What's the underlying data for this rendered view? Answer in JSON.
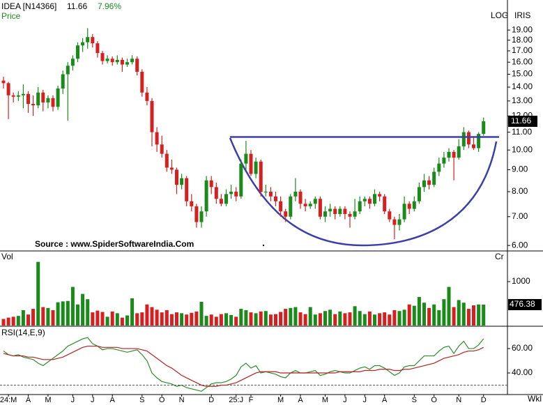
{
  "chart_data": [
    {
      "type": "candlestick",
      "title": "IDEA [N14366]",
      "change_label": "7.96%",
      "ylabel": "Price",
      "log": true,
      "scale_label": "LOG",
      "provider": "IRIS",
      "annotation": "Source : www.SpiderSoftwareIndia.Com",
      "x_unit": "Wkl",
      "up_color": "#1a8a1a",
      "down_color": "#d42020",
      "line_color": "#3b3fa8",
      "hline": 10.72,
      "ylim": [
        5.87,
        21.5
      ],
      "yticks": [
        {
          "value": 6,
          "label": "6.00"
        },
        {
          "value": 7,
          "label": "7.00"
        },
        {
          "value": 8,
          "label": "8.00"
        },
        {
          "value": 9,
          "label": "9.00"
        },
        {
          "value": 10,
          "label": "10.00"
        },
        {
          "value": 11,
          "label": "11.00"
        },
        {
          "value": 12,
          "label": "12.00"
        },
        {
          "value": 13,
          "label": "13.00"
        },
        {
          "value": 14,
          "label": "14.00"
        },
        {
          "value": 15,
          "label": "15.00"
        },
        {
          "value": 16,
          "label": "16.00"
        },
        {
          "value": 17,
          "label": "17.00"
        },
        {
          "value": 18,
          "label": "18.00"
        },
        {
          "value": 19,
          "label": "19.00"
        }
      ],
      "xticks": [
        {
          "value": 1,
          "label": "24:M"
        },
        {
          "value": 5,
          "label": "A"
        },
        {
          "value": 9,
          "label": "M"
        },
        {
          "value": 14,
          "label": "J"
        },
        {
          "value": 18,
          "label": "J"
        },
        {
          "value": 22,
          "label": "A"
        },
        {
          "value": 28,
          "label": "S"
        },
        {
          "value": 32,
          "label": "O"
        },
        {
          "value": 36,
          "label": "N"
        },
        {
          "value": 42,
          "label": "D"
        },
        {
          "value": 47,
          "label": "25:J"
        },
        {
          "value": 50,
          "label": "F"
        },
        {
          "value": 56,
          "label": "M"
        },
        {
          "value": 60,
          "label": "A"
        },
        {
          "value": 65,
          "label": "M"
        },
        {
          "value": 69,
          "label": "J"
        },
        {
          "value": 73,
          "label": "J"
        },
        {
          "value": 77,
          "label": "A"
        },
        {
          "value": 83,
          "label": "S"
        },
        {
          "value": 87,
          "label": "O"
        },
        {
          "value": 92,
          "label": "N"
        },
        {
          "value": 97,
          "label": "D"
        }
      ],
      "candles": [
        [
          14.5,
          14.8,
          13.9,
          14.3
        ],
        [
          14.3,
          14.4,
          11.8,
          13.4
        ],
        [
          13.4,
          13.6,
          12.9,
          13.3
        ],
        [
          13.3,
          13.7,
          13.0,
          13.4
        ],
        [
          13.4,
          14.2,
          12.5,
          13.5
        ],
        [
          13.5,
          13.7,
          12.2,
          12.8
        ],
        [
          12.8,
          13.4,
          12.0,
          12.7
        ],
        [
          12.7,
          14.0,
          12.5,
          13.6
        ],
        [
          13.6,
          13.8,
          12.3,
          12.9
        ],
        [
          12.9,
          13.4,
          12.5,
          13.2
        ],
        [
          13.2,
          13.4,
          12.3,
          12.6
        ],
        [
          12.6,
          14.1,
          12.4,
          13.9
        ],
        [
          13.9,
          15.3,
          13.5,
          15.0
        ],
        [
          15.0,
          16.0,
          11.7,
          15.7
        ],
        [
          15.7,
          16.6,
          15.3,
          16.3
        ],
        [
          16.3,
          17.8,
          16.0,
          17.5
        ],
        [
          17.5,
          18.2,
          16.9,
          17.8
        ],
        [
          17.8,
          19.2,
          17.2,
          18.3
        ],
        [
          18.3,
          18.6,
          17.3,
          17.7
        ],
        [
          17.7,
          17.9,
          16.4,
          16.8
        ],
        [
          16.8,
          17.0,
          15.8,
          16.1
        ],
        [
          16.1,
          16.6,
          15.9,
          16.3
        ],
        [
          16.3,
          16.5,
          15.7,
          16.0
        ],
        [
          16.0,
          16.6,
          15.8,
          16.2
        ],
        [
          16.2,
          16.4,
          15.2,
          15.8
        ],
        [
          15.8,
          16.3,
          15.6,
          16.0
        ],
        [
          16.0,
          16.6,
          15.8,
          16.3
        ],
        [
          16.3,
          16.5,
          14.9,
          15.2
        ],
        [
          15.2,
          15.4,
          13.3,
          13.6
        ],
        [
          13.6,
          14.0,
          12.7,
          13.0
        ],
        [
          13.0,
          13.2,
          10.2,
          11.0
        ],
        [
          11.0,
          11.3,
          9.9,
          10.3
        ],
        [
          10.3,
          10.8,
          9.6,
          9.8
        ],
        [
          9.8,
          10.0,
          8.9,
          9.1
        ],
        [
          9.1,
          9.5,
          8.8,
          9.0
        ],
        [
          9.0,
          9.1,
          7.9,
          8.3
        ],
        [
          8.3,
          8.8,
          8.1,
          8.6
        ],
        [
          8.6,
          8.7,
          7.4,
          7.6
        ],
        [
          7.6,
          7.9,
          7.2,
          7.4
        ],
        [
          7.4,
          7.5,
          6.6,
          6.8
        ],
        [
          6.8,
          7.4,
          6.6,
          7.2
        ],
        [
          7.2,
          8.7,
          7.0,
          8.5
        ],
        [
          8.5,
          8.7,
          7.9,
          8.2
        ],
        [
          8.2,
          8.4,
          7.5,
          7.7
        ],
        [
          7.7,
          7.9,
          7.4,
          7.5
        ],
        [
          7.5,
          8.1,
          7.4,
          7.9
        ],
        [
          7.9,
          8.3,
          7.7,
          8.0
        ],
        [
          8.0,
          8.2,
          7.6,
          7.8
        ],
        [
          7.8,
          9.5,
          7.7,
          9.3
        ],
        [
          9.3,
          10.5,
          9.0,
          9.8
        ],
        [
          9.8,
          10.0,
          8.7,
          8.8
        ],
        [
          8.8,
          9.6,
          8.6,
          9.4
        ],
        [
          9.4,
          9.5,
          7.8,
          8.0
        ],
        [
          8.0,
          8.3,
          7.8,
          8.0
        ],
        [
          8.0,
          8.2,
          7.6,
          7.8
        ],
        [
          7.8,
          8.0,
          7.4,
          7.6
        ],
        [
          7.6,
          7.8,
          7.0,
          7.2
        ],
        [
          7.2,
          7.3,
          6.8,
          7.0
        ],
        [
          7.0,
          7.9,
          6.9,
          7.8
        ],
        [
          7.8,
          8.6,
          7.6,
          8.0
        ],
        [
          8.0,
          8.1,
          7.3,
          7.5
        ],
        [
          7.5,
          7.7,
          7.2,
          7.4
        ],
        [
          7.4,
          7.6,
          7.3,
          7.5
        ],
        [
          7.5,
          7.8,
          7.3,
          7.7
        ],
        [
          7.7,
          7.8,
          6.9,
          7.0
        ],
        [
          7.0,
          7.4,
          6.8,
          7.2
        ],
        [
          7.2,
          7.5,
          7.0,
          7.3
        ],
        [
          7.3,
          7.4,
          6.9,
          7.1
        ],
        [
          7.1,
          7.4,
          7.0,
          7.3
        ],
        [
          7.3,
          7.4,
          6.9,
          7.1
        ],
        [
          7.1,
          7.2,
          6.6,
          7.0
        ],
        [
          7.0,
          7.7,
          6.9,
          7.2
        ],
        [
          7.2,
          7.8,
          7.1,
          7.6
        ],
        [
          7.6,
          7.8,
          7.4,
          7.7
        ],
        [
          7.7,
          7.8,
          7.3,
          7.5
        ],
        [
          7.5,
          8.1,
          7.4,
          7.9
        ],
        [
          7.9,
          8.0,
          7.6,
          7.8
        ],
        [
          7.8,
          7.9,
          7.1,
          7.2
        ],
        [
          7.2,
          7.3,
          6.8,
          6.9
        ],
        [
          6.9,
          7.0,
          6.2,
          6.7
        ],
        [
          6.7,
          7.1,
          6.5,
          6.9
        ],
        [
          6.9,
          7.8,
          6.8,
          7.5
        ],
        [
          7.5,
          7.6,
          7.1,
          7.3
        ],
        [
          7.3,
          7.8,
          7.2,
          7.6
        ],
        [
          7.6,
          8.4,
          7.5,
          8.2
        ],
        [
          8.2,
          8.8,
          8.0,
          8.5
        ],
        [
          8.5,
          8.7,
          8.1,
          8.3
        ],
        [
          8.3,
          9.1,
          8.2,
          8.9
        ],
        [
          8.9,
          9.6,
          8.7,
          9.3
        ],
        [
          9.3,
          9.9,
          9.1,
          9.6
        ],
        [
          9.6,
          10.1,
          9.4,
          9.9
        ],
        [
          9.9,
          10.0,
          8.5,
          9.6
        ],
        [
          9.6,
          10.6,
          9.5,
          10.2
        ],
        [
          10.2,
          11.3,
          10.0,
          11.0
        ],
        [
          11.0,
          11.1,
          10.1,
          10.3
        ],
        [
          10.3,
          10.7,
          10.0,
          10.1
        ],
        [
          10.1,
          11.0,
          9.9,
          10.9
        ],
        [
          10.9,
          11.9,
          10.8,
          11.66
        ]
      ]
    },
    {
      "type": "bar",
      "ylabel": "Vol",
      "unit_label": "Cr",
      "ylim": [
        0,
        1540
      ],
      "yticks": [
        1000
      ],
      "values": [
        150,
        180,
        200,
        220,
        350,
        250,
        380,
        1450,
        420,
        400,
        350,
        530,
        550,
        560,
        880,
        480,
        720,
        600,
        300,
        340,
        310,
        200,
        320,
        280,
        180,
        230,
        620,
        280,
        300,
        480,
        420,
        360,
        300,
        350,
        260,
        300,
        280,
        250,
        290,
        320,
        540,
        220,
        250,
        200,
        260,
        280,
        240,
        200,
        380,
        350,
        300,
        280,
        320,
        330,
        250,
        260,
        310,
        380,
        400,
        420,
        300,
        260,
        420,
        250,
        280,
        330,
        360,
        260,
        320,
        280,
        300,
        440,
        330,
        260,
        320,
        250,
        280,
        300,
        250,
        350,
        330,
        360,
        480,
        450,
        650,
        520,
        400,
        480,
        350,
        600,
        880,
        420,
        580,
        520,
        380,
        460,
        480,
        476.38
      ]
    },
    {
      "type": "line",
      "title": "RSI(14,E,9)",
      "ylim": [
        22.3,
        72.6
      ],
      "hline": 30,
      "yticks": [
        {
          "value": 40,
          "label": "40.00"
        },
        {
          "value": 60,
          "label": "60.00"
        }
      ],
      "series": [
        {
          "color": "#2e8b2e",
          "values": [
            58,
            55,
            54,
            55,
            53,
            52,
            51,
            48,
            46,
            49,
            52,
            55,
            58,
            62,
            64,
            66,
            68,
            69,
            64,
            62,
            59,
            60,
            60,
            59,
            58,
            57,
            58,
            59,
            55,
            50,
            40,
            36,
            33,
            32,
            31,
            29,
            30,
            28,
            27,
            26,
            25,
            28,
            31,
            32,
            32,
            33,
            35,
            38,
            45,
            48,
            44,
            46,
            40,
            41,
            40,
            39,
            37,
            36,
            40,
            42,
            40,
            40,
            41,
            42,
            38,
            39,
            41,
            42,
            41,
            40,
            40,
            42,
            44,
            45,
            43,
            46,
            46,
            44,
            41,
            38,
            40,
            45,
            46,
            46,
            50,
            54,
            54,
            54,
            58,
            61,
            62,
            56,
            62,
            66,
            60,
            60,
            63,
            68
          ]
        },
        {
          "color": "#b22222",
          "values": [
            56,
            55,
            54,
            54,
            54,
            53,
            53,
            52,
            51,
            51,
            51,
            52,
            53,
            55,
            57,
            59,
            61,
            62,
            62,
            62,
            61,
            61,
            61,
            61,
            60,
            60,
            60,
            60,
            59,
            58,
            55,
            52,
            49,
            46,
            44,
            41,
            38,
            36,
            34,
            32,
            30,
            29,
            29,
            29,
            30,
            30,
            31,
            32,
            34,
            36,
            38,
            40,
            41,
            41,
            41,
            41,
            40,
            40,
            40,
            40,
            40,
            40,
            40,
            40,
            40,
            40,
            40,
            40,
            41,
            41,
            41,
            41,
            41,
            42,
            42,
            42,
            43,
            43,
            43,
            42,
            42,
            43,
            43,
            44,
            45,
            46,
            47,
            48,
            50,
            52,
            53,
            54,
            55,
            57,
            58,
            58,
            59,
            61
          ]
        }
      ]
    }
  ]
}
